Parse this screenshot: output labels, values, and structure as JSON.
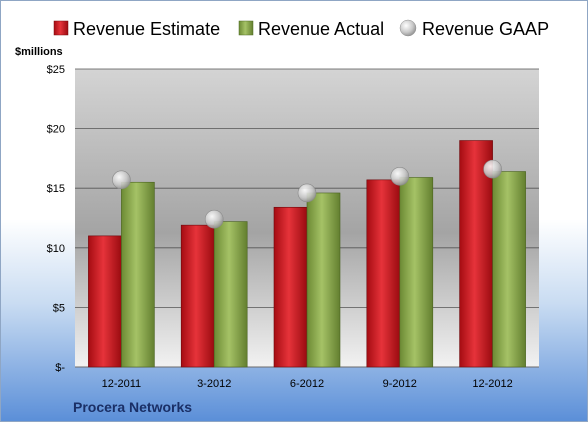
{
  "chart_data": {
    "type": "bar",
    "title": "",
    "ylabel": "$millions",
    "footer": "Procera Networks",
    "categories": [
      "12-2011",
      "3-2012",
      "6-2012",
      "9-2012",
      "12-2012"
    ],
    "y_ticks": [
      "$-",
      "$5",
      "$10",
      "$15",
      "$20",
      "$25"
    ],
    "ylim": [
      0,
      25
    ],
    "grid": true,
    "legend_position": "top",
    "series": [
      {
        "name": "Revenue Estimate",
        "kind": "bar",
        "color": "#c8161d",
        "values": [
          11.0,
          11.9,
          13.4,
          15.7,
          19.0
        ]
      },
      {
        "name": "Revenue Actual",
        "kind": "bar",
        "color": "#8aa84c",
        "values": [
          15.5,
          12.2,
          14.6,
          15.9,
          16.4
        ]
      },
      {
        "name": "Revenue GAAP",
        "kind": "marker",
        "color": "#b8b8b8",
        "values": [
          15.7,
          12.4,
          14.6,
          16.0,
          16.6
        ]
      }
    ]
  }
}
